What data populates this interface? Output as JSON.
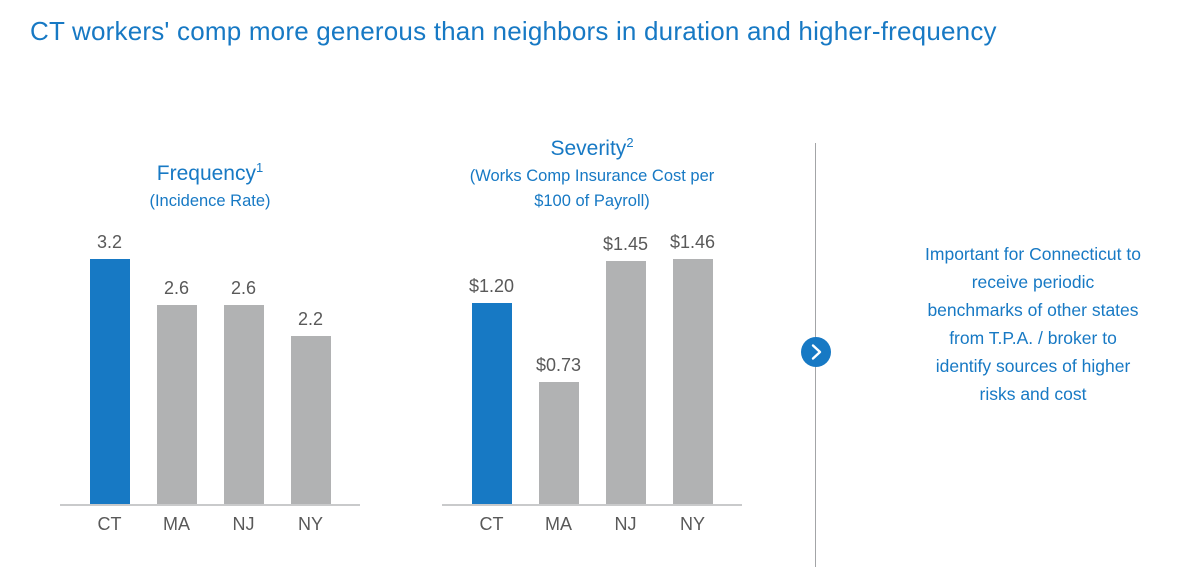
{
  "page_title": "CT workers' comp more generous than neighbors in duration and higher-frequency",
  "colors": {
    "accent_blue": "#1779c4",
    "bar_gray": "#b1b2b3",
    "label_gray": "#595959",
    "axis_gray": "#c9cacb",
    "divider_gray": "#a3a5a7"
  },
  "chart_data": [
    {
      "type": "bar",
      "title": "Frequency",
      "title_superscript": "1",
      "subtitle": "(Incidence Rate)",
      "categories": [
        "CT",
        "MA",
        "NJ",
        "NY"
      ],
      "values": [
        3.2,
        2.6,
        2.6,
        2.2
      ],
      "value_labels": [
        "3.2",
        "2.6",
        "2.6",
        "2.2"
      ],
      "bar_colors": [
        "#1779c4",
        "#b1b2b3",
        "#b1b2b3",
        "#b1b2b3"
      ],
      "xlabel": "",
      "ylabel": "",
      "ylim": [
        0,
        3.4
      ],
      "grid": false,
      "legend": false
    },
    {
      "type": "bar",
      "title": "Severity",
      "title_superscript": "2",
      "subtitle": "(Works Comp Insurance Cost per $100 of Payroll)",
      "categories": [
        "CT",
        "MA",
        "NJ",
        "NY"
      ],
      "values": [
        1.2,
        0.73,
        1.45,
        1.46
      ],
      "value_labels": [
        "$1.20",
        "$0.73",
        "$1.45",
        "$1.46"
      ],
      "bar_colors": [
        "#1779c4",
        "#b1b2b3",
        "#b1b2b3",
        "#b1b2b3"
      ],
      "xlabel": "",
      "ylabel": "",
      "ylim": [
        0,
        1.55
      ],
      "grid": false,
      "legend": false
    }
  ],
  "callout": {
    "icon": "chevron-right-icon",
    "text": "Important for Connecticut to receive periodic benchmarks of other states from T.P.A. / broker to identify sources of higher risks and cost"
  }
}
